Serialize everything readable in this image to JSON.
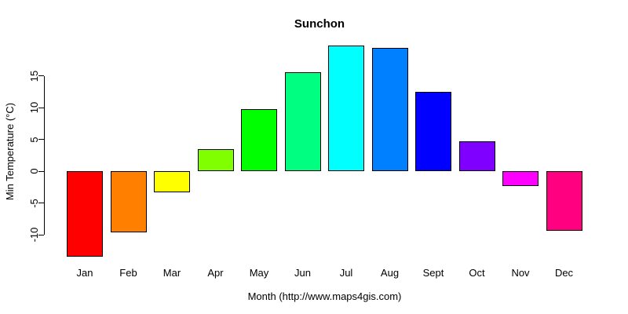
{
  "window": {
    "background": "#FFFFFF",
    "text_color": "#000000"
  },
  "chart_data": {
    "type": "bar",
    "title": "Sunchon",
    "xlabel": "Month (http://www.maps4gis.com)",
    "ylabel": "Min Temperature (°C)",
    "categories": [
      "Jan",
      "Feb",
      "Mar",
      "Apr",
      "May",
      "Jun",
      "Jul",
      "Aug",
      "Sept",
      "Oct",
      "Nov",
      "Dec"
    ],
    "values": [
      -13.4,
      -9.6,
      -3.3,
      3.4,
      9.7,
      15.6,
      19.8,
      19.4,
      12.5,
      4.7,
      -2.3,
      -9.4
    ],
    "bar_colors": [
      "#FF0000",
      "#FF8000",
      "#FFFF00",
      "#80FF00",
      "#00FF00",
      "#00FF80",
      "#00FFFF",
      "#0080FF",
      "#0000FF",
      "#8000FF",
      "#FF00FF",
      "#FF0080"
    ],
    "bar_border_color": "#000000",
    "y_ticks": [
      15,
      10,
      5,
      0,
      -5,
      -10
    ],
    "ylim": [
      -14.5,
      20
    ],
    "grid": false,
    "legend_position": "none",
    "baseline_drawn": false
  }
}
